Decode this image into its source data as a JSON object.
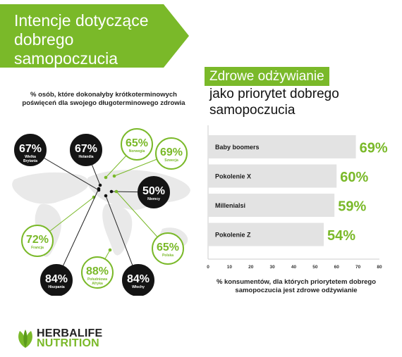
{
  "banner": {
    "title": "Intencje dotyczące dobrego samopoczucia",
    "color": "#7ab929"
  },
  "left": {
    "subtitle": "% osób, które dokonałyby krótkoterminowych poświęceń dla swojego długoterminowego zdrowia"
  },
  "right": {
    "title_highlight": "Zdrowe odżywianie",
    "title_rest": "jako priorytet dobrego samopoczucia",
    "caption": "% konsumentów, dla których priorytetem dobrego samopoczucia jest zdrowe odżywianie"
  },
  "logo": {
    "line1": "HERBALIFE",
    "line2": "NUTRITION"
  },
  "chart_data": [
    {
      "type": "scatter",
      "points": [
        {
          "label": "67%",
          "country": "Wielka Brytania",
          "style": "dark"
        },
        {
          "label": "67%",
          "country": "Holandia",
          "style": "dark"
        },
        {
          "label": "65%",
          "country": "Norwegia",
          "style": "green"
        },
        {
          "label": "69%",
          "country": "Szwecja",
          "style": "green"
        },
        {
          "label": "50%",
          "country": "Niemcy",
          "style": "dark"
        },
        {
          "label": "72%",
          "country": "Francja",
          "style": "green"
        },
        {
          "label": "65%",
          "country": "Polska",
          "style": "green"
        },
        {
          "label": "84%",
          "country": "Hiszpania",
          "style": "dark"
        },
        {
          "label": "88%",
          "country": "Południowa Afryka",
          "style": "green"
        },
        {
          "label": "84%",
          "country": "Włochy",
          "style": "dark"
        }
      ]
    },
    {
      "type": "bar",
      "orientation": "horizontal",
      "categories": [
        "Baby boomers",
        "Pokolenie X",
        "Millenialsi",
        "Pokolenie Z"
      ],
      "values": [
        69,
        60,
        59,
        54
      ],
      "value_labels": [
        "69%",
        "60%",
        "59%",
        "54%"
      ],
      "xlim": [
        0,
        80
      ],
      "xticks": [
        "0",
        "10",
        "20",
        "30",
        "40",
        "50",
        "60",
        "70",
        "80"
      ],
      "bar_color": "#e3e3e3",
      "label_color": "#7ab929"
    }
  ]
}
